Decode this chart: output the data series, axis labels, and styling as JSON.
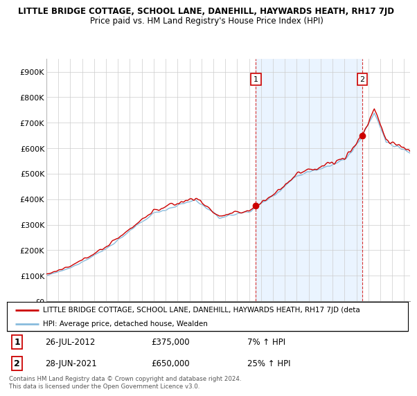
{
  "title_line1": "LITTLE BRIDGE COTTAGE, SCHOOL LANE, DANEHILL, HAYWARDS HEATH, RH17 7JD",
  "title_line2": "Price paid vs. HM Land Registry's House Price Index (HPI)",
  "yticks": [
    0,
    100000,
    200000,
    300000,
    400000,
    500000,
    600000,
    700000,
    800000,
    900000
  ],
  "ytick_labels": [
    "£0",
    "£100K",
    "£200K",
    "£300K",
    "£400K",
    "£500K",
    "£600K",
    "£700K",
    "£800K",
    "£900K"
  ],
  "ylim": [
    0,
    950000
  ],
  "xlim_start": 1995.0,
  "xlim_end": 2025.5,
  "sale1_x": 2012.57,
  "sale1_y": 375000,
  "sale1_label": "1",
  "sale2_x": 2021.49,
  "sale2_y": 650000,
  "sale2_label": "2",
  "sale_color": "#cc0000",
  "hpi_color": "#88bbdd",
  "shade_color": "#ddeeff",
  "grid_color": "#cccccc",
  "background_color": "#ffffff",
  "legend_line1": "LITTLE BRIDGE COTTAGE, SCHOOL LANE, DANEHILL, HAYWARDS HEATH, RH17 7JD (deta",
  "legend_line2": "HPI: Average price, detached house, Wealden",
  "annotation1_date": "26-JUL-2012",
  "annotation1_price": "£375,000",
  "annotation1_hpi": "7% ↑ HPI",
  "annotation2_date": "28-JUN-2021",
  "annotation2_price": "£650,000",
  "annotation2_hpi": "25% ↑ HPI",
  "footer": "Contains HM Land Registry data © Crown copyright and database right 2024.\nThis data is licensed under the Open Government Licence v3.0."
}
